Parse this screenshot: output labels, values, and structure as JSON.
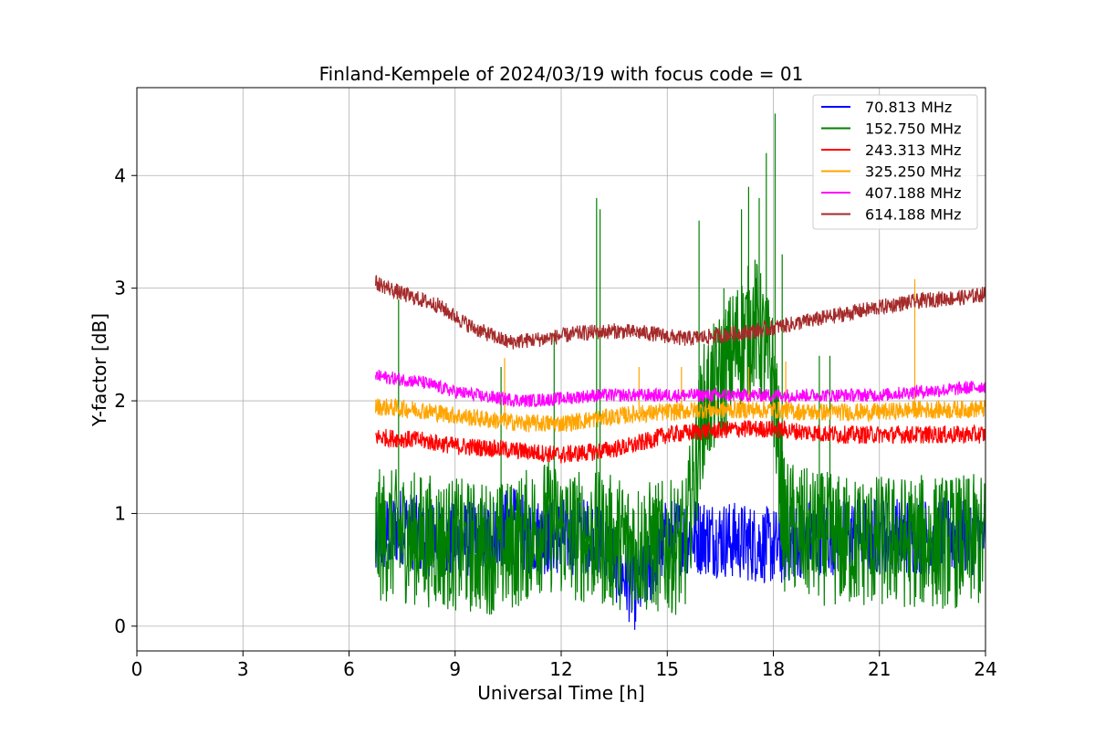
{
  "chart_data": {
    "type": "line",
    "title": "Finland-Kempele of 2024/03/19 with focus code = 01",
    "xlabel": "Universal Time [h]",
    "ylabel": "Y-factor [dB]",
    "xlim": [
      0,
      24
    ],
    "ylim": [
      -0.22,
      4.78
    ],
    "xticks": [
      0,
      3,
      6,
      9,
      12,
      15,
      18,
      21,
      24
    ],
    "yticks": [
      0,
      1,
      2,
      3,
      4
    ],
    "grid": true,
    "legend_position": "top-right",
    "series": [
      {
        "name": " 70.813 MHz",
        "color": "#0000ff",
        "values": [
          [
            6.75,
            0.65
          ],
          [
            7.0,
            0.8
          ],
          [
            7.5,
            0.9
          ],
          [
            8.0,
            0.8
          ],
          [
            9.0,
            0.75
          ],
          [
            10.0,
            0.8
          ],
          [
            10.6,
            0.9
          ],
          [
            11.0,
            0.8
          ],
          [
            12.0,
            0.8
          ],
          [
            13.0,
            0.8
          ],
          [
            14.1,
            0.3
          ],
          [
            15.0,
            0.8
          ],
          [
            16.0,
            0.8
          ],
          [
            18.2,
            0.7
          ],
          [
            19.0,
            0.8
          ],
          [
            21.0,
            0.8
          ],
          [
            24.0,
            0.8
          ]
        ],
        "band": 0.35
      },
      {
        "name": "152.750 MHz",
        "color": "#008000",
        "values": [
          [
            6.75,
            0.8
          ],
          [
            7.5,
            0.8
          ],
          [
            8.5,
            0.75
          ],
          [
            9.5,
            0.7
          ],
          [
            10.5,
            0.7
          ],
          [
            11.5,
            0.9
          ],
          [
            12.5,
            0.8
          ],
          [
            13.5,
            0.75
          ],
          [
            14.5,
            0.7
          ],
          [
            15.5,
            0.7
          ],
          [
            16.0,
            1.9
          ],
          [
            16.5,
            2.2
          ],
          [
            17.0,
            2.5
          ],
          [
            17.5,
            2.7
          ],
          [
            18.0,
            2.2
          ],
          [
            18.3,
            0.9
          ],
          [
            19.0,
            0.8
          ],
          [
            20.0,
            0.75
          ],
          [
            21.0,
            0.75
          ],
          [
            22.0,
            0.75
          ],
          [
            23.0,
            0.75
          ],
          [
            24.0,
            0.75
          ]
        ],
        "band": 0.6,
        "spikes": [
          [
            7.4,
            2.9
          ],
          [
            10.3,
            2.3
          ],
          [
            11.8,
            2.6
          ],
          [
            13.0,
            3.8
          ],
          [
            13.1,
            3.7
          ],
          [
            15.9,
            3.6
          ],
          [
            16.6,
            3.0
          ],
          [
            17.1,
            3.7
          ],
          [
            17.3,
            3.9
          ],
          [
            17.6,
            3.8
          ],
          [
            17.8,
            4.2
          ],
          [
            18.05,
            4.55
          ],
          [
            18.25,
            3.3
          ],
          [
            19.3,
            2.4
          ],
          [
            19.6,
            2.4
          ]
        ]
      },
      {
        "name": "243.313 MHz",
        "color": "#ff0000",
        "values": [
          [
            6.75,
            1.68
          ],
          [
            8.0,
            1.65
          ],
          [
            9.0,
            1.6
          ],
          [
            10.0,
            1.58
          ],
          [
            11.0,
            1.55
          ],
          [
            12.0,
            1.52
          ],
          [
            13.0,
            1.55
          ],
          [
            14.0,
            1.6
          ],
          [
            15.0,
            1.7
          ],
          [
            16.0,
            1.73
          ],
          [
            17.0,
            1.75
          ],
          [
            18.0,
            1.75
          ],
          [
            19.0,
            1.72
          ],
          [
            20.0,
            1.7
          ],
          [
            21.0,
            1.7
          ],
          [
            22.0,
            1.7
          ],
          [
            23.0,
            1.7
          ],
          [
            24.0,
            1.7
          ]
        ],
        "band": 0.08
      },
      {
        "name": "325.250 MHz",
        "color": "#ffa500",
        "values": [
          [
            6.75,
            1.95
          ],
          [
            8.0,
            1.92
          ],
          [
            9.0,
            1.87
          ],
          [
            10.0,
            1.83
          ],
          [
            11.0,
            1.8
          ],
          [
            12.0,
            1.8
          ],
          [
            13.0,
            1.84
          ],
          [
            14.0,
            1.88
          ],
          [
            15.0,
            1.9
          ],
          [
            16.0,
            1.92
          ],
          [
            17.0,
            1.92
          ],
          [
            18.0,
            1.92
          ],
          [
            19.0,
            1.9
          ],
          [
            20.0,
            1.9
          ],
          [
            21.0,
            1.9
          ],
          [
            22.0,
            1.92
          ],
          [
            23.0,
            1.92
          ],
          [
            24.0,
            1.93
          ]
        ],
        "band": 0.08,
        "spikes": [
          [
            10.4,
            2.38
          ],
          [
            14.2,
            2.3
          ],
          [
            15.4,
            2.3
          ],
          [
            17.3,
            2.3
          ],
          [
            18.35,
            2.35
          ],
          [
            22.0,
            3.08
          ]
        ]
      },
      {
        "name": "407.188 MHz",
        "color": "#ff00ff",
        "values": [
          [
            6.75,
            2.22
          ],
          [
            8.0,
            2.17
          ],
          [
            9.0,
            2.08
          ],
          [
            10.0,
            2.03
          ],
          [
            11.0,
            2.0
          ],
          [
            12.0,
            2.02
          ],
          [
            13.0,
            2.05
          ],
          [
            14.0,
            2.05
          ],
          [
            15.0,
            2.05
          ],
          [
            16.0,
            2.05
          ],
          [
            17.0,
            2.05
          ],
          [
            18.0,
            2.05
          ],
          [
            19.0,
            2.05
          ],
          [
            20.0,
            2.05
          ],
          [
            21.0,
            2.05
          ],
          [
            22.0,
            2.08
          ],
          [
            23.0,
            2.1
          ],
          [
            24.0,
            2.13
          ]
        ],
        "band": 0.06
      },
      {
        "name": "614.188 MHz",
        "color": "#a52a2a",
        "values": [
          [
            6.75,
            3.05
          ],
          [
            7.5,
            2.95
          ],
          [
            8.5,
            2.85
          ],
          [
            9.5,
            2.65
          ],
          [
            10.5,
            2.52
          ],
          [
            11.5,
            2.55
          ],
          [
            12.5,
            2.6
          ],
          [
            13.5,
            2.62
          ],
          [
            14.5,
            2.6
          ],
          [
            15.5,
            2.55
          ],
          [
            16.5,
            2.58
          ],
          [
            17.5,
            2.62
          ],
          [
            18.5,
            2.68
          ],
          [
            19.5,
            2.74
          ],
          [
            20.5,
            2.8
          ],
          [
            21.5,
            2.86
          ],
          [
            22.5,
            2.9
          ],
          [
            23.5,
            2.92
          ],
          [
            24.0,
            2.95
          ]
        ],
        "band": 0.07
      }
    ]
  }
}
